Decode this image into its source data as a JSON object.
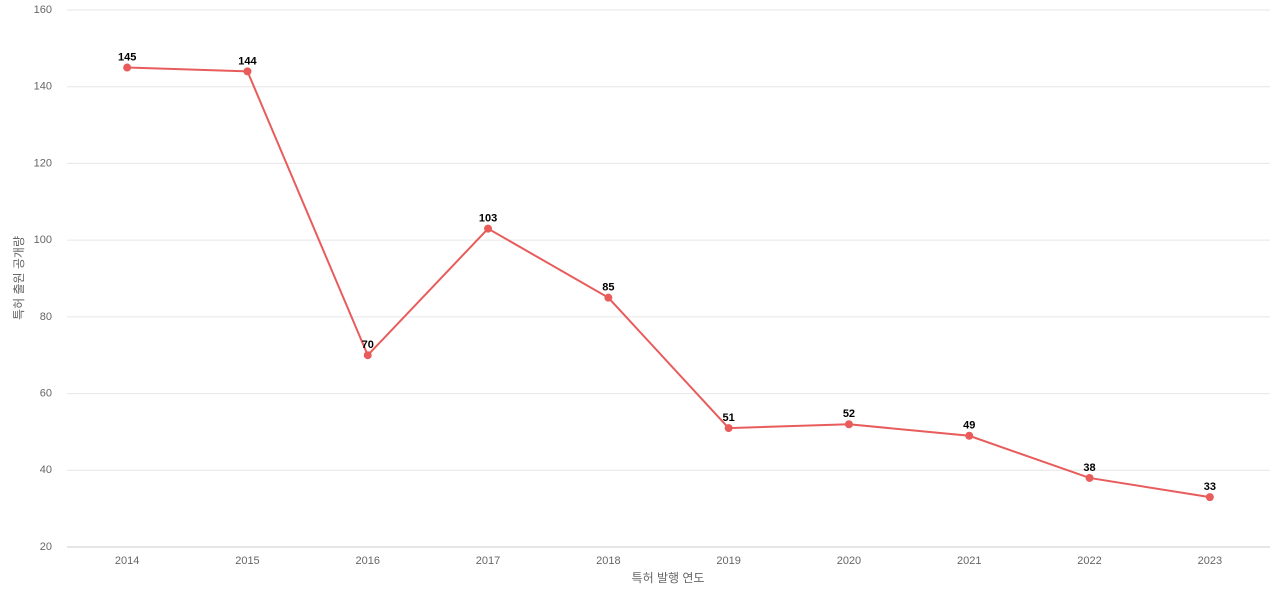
{
  "chart_data": {
    "type": "line",
    "x_label": "특허 발행 연도",
    "y_label": "특허 출원 공개량",
    "categories": [
      "2014",
      "2015",
      "2016",
      "2017",
      "2018",
      "2019",
      "2020",
      "2021",
      "2022",
      "2023"
    ],
    "series": [
      {
        "name": "특허 출원 공개량",
        "color": "#e85c5c",
        "values": [
          145,
          144,
          70,
          103,
          85,
          51,
          52,
          49,
          38,
          33
        ]
      }
    ],
    "ylim": [
      20,
      160
    ],
    "yticks": [
      20,
      40,
      60,
      80,
      100,
      120,
      140,
      160
    ],
    "grid": true,
    "data_labels": true
  }
}
